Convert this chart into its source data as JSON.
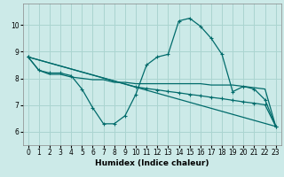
{
  "xlabel": "Humidex (Indice chaleur)",
  "xlim": [
    -0.5,
    23.5
  ],
  "ylim": [
    5.5,
    10.8
  ],
  "yticks": [
    6,
    7,
    8,
    9,
    10
  ],
  "xticks": [
    0,
    1,
    2,
    3,
    4,
    5,
    6,
    7,
    8,
    9,
    10,
    11,
    12,
    13,
    14,
    15,
    16,
    17,
    18,
    19,
    20,
    21,
    22,
    23
  ],
  "bg_color": "#cceae8",
  "grid_color": "#aad4d0",
  "line_color": "#006b6b",
  "lines": [
    {
      "x": [
        0,
        1,
        2,
        3,
        4,
        5,
        6,
        7,
        8,
        9,
        10,
        11,
        12,
        13,
        14,
        15,
        16,
        17,
        18,
        19,
        20,
        21,
        22,
        23
      ],
      "y": [
        8.8,
        8.3,
        8.2,
        8.2,
        8.1,
        7.6,
        6.9,
        6.3,
        6.3,
        6.6,
        7.4,
        8.5,
        8.8,
        8.9,
        10.15,
        10.25,
        9.95,
        9.5,
        8.9,
        7.5,
        7.7,
        7.6,
        7.2,
        6.2
      ],
      "marker": "+"
    },
    {
      "x": [
        0,
        1,
        2,
        3,
        4,
        5,
        6,
        7,
        8,
        9,
        10,
        11,
        12,
        13,
        14,
        15,
        16,
        17,
        18,
        19,
        20,
        21,
        22,
        23
      ],
      "y": [
        8.8,
        8.3,
        8.15,
        8.15,
        8.05,
        8.0,
        7.95,
        7.95,
        7.85,
        7.85,
        7.8,
        7.8,
        7.8,
        7.8,
        7.8,
        7.8,
        7.8,
        7.75,
        7.75,
        7.75,
        7.7,
        7.65,
        7.6,
        6.2
      ],
      "marker": null
    },
    {
      "x": [
        0,
        23
      ],
      "y": [
        8.8,
        6.2
      ],
      "marker": null
    },
    {
      "x": [
        0,
        10,
        11,
        12,
        13,
        14,
        15,
        16,
        17,
        18,
        19,
        20,
        21,
        22,
        23
      ],
      "y": [
        8.8,
        7.68,
        7.62,
        7.57,
        7.51,
        7.46,
        7.4,
        7.35,
        7.29,
        7.24,
        7.18,
        7.12,
        7.07,
        7.01,
        6.2
      ],
      "marker": "+"
    }
  ],
  "axis_fontsize": 6.5,
  "tick_fontsize": 5.5,
  "linewidth": 0.9,
  "markersize": 3.5,
  "markeredgewidth": 0.8
}
